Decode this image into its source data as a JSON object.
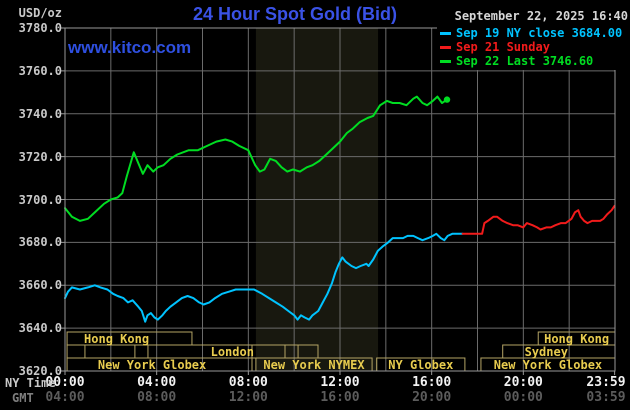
{
  "header": {
    "unit_label": "USD/oz",
    "title": "24 Hour Spot Gold (Bid)",
    "datetime": "September 22, 2025 16:40",
    "watermark": "www.kitco.com"
  },
  "legend": [
    {
      "label": "Sep 19 NY close 3684.00",
      "color": "#00c3ff"
    },
    {
      "label": "Sep 21 Sunday",
      "color": "#f21b1b"
    },
    {
      "label": "Sep 22 Last 3746.60",
      "color": "#00dd22"
    }
  ],
  "axes": {
    "ny_caption": "NY Time",
    "gmt_caption": "GMT",
    "price_min": 3620,
    "price_max": 3780,
    "price_step": 20,
    "time_ticks": [
      {
        "hour": 0,
        "ny": "00:00",
        "gmt": "04:00"
      },
      {
        "hour": 4,
        "ny": "04:00",
        "gmt": "08:00"
      },
      {
        "hour": 8,
        "ny": "08:00",
        "gmt": "12:00"
      },
      {
        "hour": 12,
        "ny": "12:00",
        "gmt": "16:00"
      },
      {
        "hour": 16,
        "ny": "16:00",
        "gmt": "20:00"
      },
      {
        "hour": 20,
        "ny": "20:00",
        "gmt": "00:00"
      },
      {
        "hour": 23.983,
        "ny": "23:59",
        "gmt": "03:59"
      }
    ]
  },
  "sessions": {
    "rows": [
      [
        {
          "label": "Hong Kong",
          "start": 0.09,
          "end": 5.54,
          "label_hour": 2.25
        },
        {
          "label": "Hong Kong",
          "start": 20.65,
          "end": 24
        }
      ],
      [
        {
          "label": "London",
          "start": 0.09,
          "end": 11.04,
          "label_hour": 7.3,
          "dividers": [
            0.87,
            3.05,
            3.62,
            8.16,
            9.6,
            10.17
          ]
        },
        {
          "label": "Sydney",
          "start": 19.1,
          "end": 24,
          "label_hour": 21.0
        }
      ],
      [
        {
          "label": "New York Globex",
          "start": 0.09,
          "end": 8.16,
          "label_hour": 3.8
        },
        {
          "label": "New York NYMEX",
          "start": 8.33,
          "end": 13.4
        },
        {
          "label": "NY Globex",
          "start": 13.6,
          "end": 17.45
        },
        {
          "label": "New York Globex",
          "start": 18.15,
          "end": 24
        }
      ]
    ]
  },
  "chart_data": {
    "type": "line",
    "title": "24 Hour Spot Gold (Bid)",
    "ylabel": "USD/oz",
    "ylim": [
      3620,
      3780
    ],
    "xlim_hours": [
      0,
      24
    ],
    "grid": {
      "price_step": 20,
      "hour_step": 2
    },
    "nymex_shade_hours": [
      8.33,
      13.66
    ],
    "series": [
      {
        "name": "Sep 19 NY close",
        "close_value": 3684.0,
        "color": "#00c3ff",
        "points": [
          [
            0,
            3654
          ],
          [
            0.13,
            3657
          ],
          [
            0.3,
            3659
          ],
          [
            0.65,
            3658
          ],
          [
            1,
            3659
          ],
          [
            1.3,
            3660
          ],
          [
            1.55,
            3659
          ],
          [
            1.85,
            3658
          ],
          [
            2.1,
            3656
          ],
          [
            2.3,
            3655
          ],
          [
            2.55,
            3654
          ],
          [
            2.75,
            3652
          ],
          [
            2.95,
            3653
          ],
          [
            3.2,
            3650
          ],
          [
            3.35,
            3648
          ],
          [
            3.5,
            3643
          ],
          [
            3.6,
            3646
          ],
          [
            3.75,
            3647
          ],
          [
            3.9,
            3645
          ],
          [
            4.05,
            3644
          ],
          [
            4.25,
            3646
          ],
          [
            4.4,
            3648
          ],
          [
            4.6,
            3650
          ],
          [
            4.85,
            3652
          ],
          [
            5.1,
            3654
          ],
          [
            5.35,
            3655
          ],
          [
            5.6,
            3654
          ],
          [
            5.85,
            3652
          ],
          [
            6.05,
            3651
          ],
          [
            6.3,
            3652
          ],
          [
            6.55,
            3654
          ],
          [
            6.85,
            3656
          ],
          [
            7.15,
            3657
          ],
          [
            7.45,
            3658
          ],
          [
            7.85,
            3658
          ],
          [
            8.25,
            3658
          ],
          [
            8.6,
            3656
          ],
          [
            8.9,
            3654
          ],
          [
            9.2,
            3652
          ],
          [
            9.5,
            3650
          ],
          [
            9.75,
            3648
          ],
          [
            10,
            3646
          ],
          [
            10.15,
            3644
          ],
          [
            10.3,
            3646
          ],
          [
            10.45,
            3645
          ],
          [
            10.65,
            3644
          ],
          [
            10.8,
            3646
          ],
          [
            11.05,
            3648
          ],
          [
            11.25,
            3652
          ],
          [
            11.45,
            3656
          ],
          [
            11.65,
            3661
          ],
          [
            11.8,
            3666
          ],
          [
            11.95,
            3670
          ],
          [
            12.1,
            3673
          ],
          [
            12.25,
            3671
          ],
          [
            12.5,
            3669
          ],
          [
            12.7,
            3668
          ],
          [
            12.9,
            3669
          ],
          [
            13.15,
            3670
          ],
          [
            13.25,
            3669
          ],
          [
            13.45,
            3672
          ],
          [
            13.65,
            3676
          ],
          [
            13.85,
            3678
          ],
          [
            14.1,
            3680
          ],
          [
            14.3,
            3682
          ],
          [
            14.5,
            3682
          ],
          [
            14.75,
            3682
          ],
          [
            14.95,
            3683
          ],
          [
            15.2,
            3683
          ],
          [
            15.4,
            3682
          ],
          [
            15.6,
            3681
          ],
          [
            15.85,
            3682
          ],
          [
            16.05,
            3683
          ],
          [
            16.2,
            3684
          ],
          [
            16.4,
            3682
          ],
          [
            16.55,
            3681
          ],
          [
            16.7,
            3683
          ],
          [
            16.9,
            3684
          ],
          [
            17.15,
            3684
          ],
          [
            17.35,
            3684
          ]
        ]
      },
      {
        "name": "Sep 21 Sunday",
        "color": "#f21b1b",
        "points": [
          [
            17.35,
            3684
          ],
          [
            18.2,
            3684
          ],
          [
            18.3,
            3689
          ],
          [
            18.45,
            3690
          ],
          [
            18.7,
            3692
          ],
          [
            18.85,
            3692
          ],
          [
            19.1,
            3690
          ],
          [
            19.3,
            3689
          ],
          [
            19.55,
            3688
          ],
          [
            19.75,
            3688
          ],
          [
            20,
            3687
          ],
          [
            20.15,
            3689
          ],
          [
            20.4,
            3688
          ],
          [
            20.6,
            3687
          ],
          [
            20.75,
            3686
          ],
          [
            21,
            3687
          ],
          [
            21.2,
            3687
          ],
          [
            21.4,
            3688
          ],
          [
            21.65,
            3689
          ],
          [
            21.85,
            3689
          ],
          [
            22.1,
            3691
          ],
          [
            22.25,
            3694
          ],
          [
            22.4,
            3695
          ],
          [
            22.5,
            3692
          ],
          [
            22.65,
            3690
          ],
          [
            22.8,
            3689
          ],
          [
            23,
            3690
          ],
          [
            23.15,
            3690
          ],
          [
            23.35,
            3690
          ],
          [
            23.5,
            3691
          ],
          [
            23.65,
            3693
          ],
          [
            23.85,
            3695
          ],
          [
            23.98,
            3697
          ]
        ]
      },
      {
        "name": "Sep 22 Last",
        "last_value": 3746.6,
        "color": "#00dd22",
        "end_dot": true,
        "points": [
          [
            0,
            3696
          ],
          [
            0.3,
            3692
          ],
          [
            0.65,
            3690
          ],
          [
            1,
            3691
          ],
          [
            1.3,
            3694
          ],
          [
            1.7,
            3698
          ],
          [
            2,
            3700
          ],
          [
            2.3,
            3701
          ],
          [
            2.5,
            3703
          ],
          [
            2.7,
            3711
          ],
          [
            3,
            3722
          ],
          [
            3.2,
            3717
          ],
          [
            3.4,
            3712
          ],
          [
            3.6,
            3716
          ],
          [
            3.85,
            3713
          ],
          [
            4.05,
            3715
          ],
          [
            4.3,
            3716
          ],
          [
            4.6,
            3719
          ],
          [
            4.9,
            3721
          ],
          [
            5.4,
            3723
          ],
          [
            5.8,
            3723
          ],
          [
            6.2,
            3725
          ],
          [
            6.6,
            3727
          ],
          [
            7,
            3728
          ],
          [
            7.3,
            3727
          ],
          [
            7.6,
            3725
          ],
          [
            8,
            3723
          ],
          [
            8.3,
            3716
          ],
          [
            8.5,
            3713
          ],
          [
            8.7,
            3714
          ],
          [
            8.95,
            3719
          ],
          [
            9.2,
            3718
          ],
          [
            9.45,
            3715
          ],
          [
            9.7,
            3713
          ],
          [
            9.95,
            3714
          ],
          [
            10.25,
            3713
          ],
          [
            10.55,
            3715
          ],
          [
            10.8,
            3716
          ],
          [
            11.1,
            3718
          ],
          [
            11.4,
            3721
          ],
          [
            11.7,
            3724
          ],
          [
            12,
            3727
          ],
          [
            12.3,
            3731
          ],
          [
            12.55,
            3733
          ],
          [
            12.85,
            3736
          ],
          [
            13.2,
            3738
          ],
          [
            13.45,
            3739
          ],
          [
            13.75,
            3744
          ],
          [
            14.05,
            3746
          ],
          [
            14.3,
            3745
          ],
          [
            14.6,
            3745
          ],
          [
            14.9,
            3744
          ],
          [
            15.2,
            3747
          ],
          [
            15.35,
            3748
          ],
          [
            15.6,
            3745
          ],
          [
            15.8,
            3744
          ],
          [
            16.05,
            3746
          ],
          [
            16.25,
            3748
          ],
          [
            16.45,
            3745
          ],
          [
            16.67,
            3746.6
          ]
        ]
      }
    ]
  },
  "colors": {
    "background": "#000000",
    "grid": "#6b6b6b",
    "plot_border": "#999999",
    "nymex_shade": "#18180f",
    "session_border": "#b4a465",
    "session_label": "#e8cc4f",
    "title_blue": "#3a52e6"
  }
}
